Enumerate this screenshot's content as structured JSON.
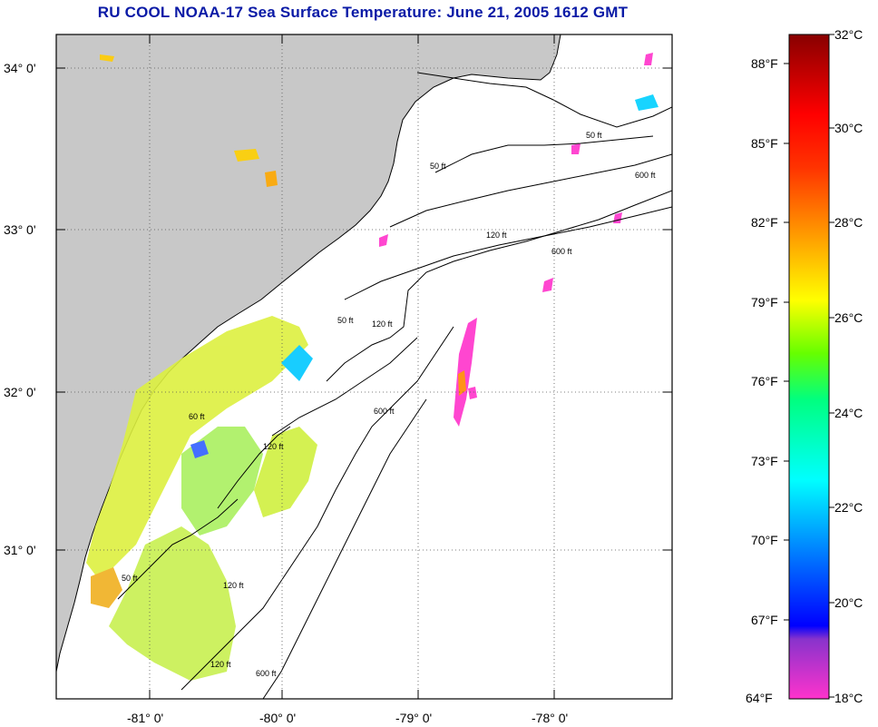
{
  "title": "RU COOL  NOAA-17  Sea Surface Temperature:  June 21, 2005 1612 GMT",
  "map": {
    "lat_labels": [
      "34° 0'",
      "33° 0'",
      "32° 0'",
      "31° 0'"
    ],
    "lon_labels": [
      "-81° 0'",
      "-80° 0'",
      "-79° 0'",
      "-78° 0'"
    ],
    "contours": [
      "50 ft",
      "120 ft",
      "600 ft",
      "50 ft",
      "120 ft",
      "600 ft",
      "60 ft",
      "120 ft",
      "50 ft",
      "120 ft",
      "600 ft",
      "50 ft",
      "120 ft",
      "600 ft"
    ],
    "colors": {
      "land": "#c8c8c8",
      "ocean": "#ffffff",
      "grid": "#555555"
    }
  },
  "colorbar": {
    "fahrenheit": [
      "88°F",
      "85°F",
      "82°F",
      "79°F",
      "76°F",
      "73°F",
      "70°F",
      "67°F",
      "64°F"
    ],
    "celsius": [
      "32°C",
      "30°C",
      "28°C",
      "26°C",
      "24°C",
      "22°C",
      "20°C",
      "18°C"
    ]
  }
}
